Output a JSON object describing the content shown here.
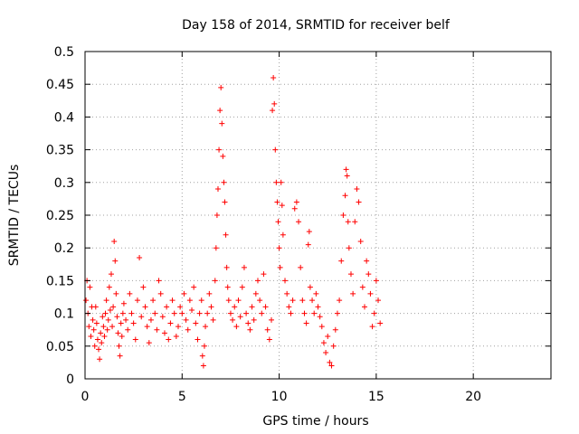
{
  "chart_data": {
    "type": "scatter",
    "title": "Day 158 of 2014, SRMTID for receiver belf",
    "xlabel": "GPS time / hours",
    "ylabel": "SRMTID / TECUs",
    "xlim": [
      0,
      24
    ],
    "ylim": [
      0,
      0.5
    ],
    "xticks": [
      0,
      5,
      10,
      15,
      20
    ],
    "yticks": [
      0,
      0.05,
      0.1,
      0.15,
      0.2,
      0.25,
      0.3,
      0.35,
      0.4,
      0.45,
      0.5
    ],
    "xtick_labels": [
      "0",
      "5",
      "10",
      "15",
      "20"
    ],
    "ytick_labels": [
      "0",
      "0.05",
      "0.1",
      "0.15",
      "0.2",
      "0.25",
      "0.3",
      "0.35",
      "0.4",
      "0.45",
      "0.5"
    ],
    "grid": true,
    "marker": "+",
    "color": "#ff0000",
    "series": [
      {
        "name": "SRMTID",
        "points": [
          [
            0.05,
            0.12
          ],
          [
            0.1,
            0.15
          ],
          [
            0.15,
            0.1
          ],
          [
            0.2,
            0.08
          ],
          [
            0.25,
            0.14
          ],
          [
            0.3,
            0.065
          ],
          [
            0.35,
            0.11
          ],
          [
            0.4,
            0.09
          ],
          [
            0.45,
            0.075
          ],
          [
            0.5,
            0.05
          ],
          [
            0.55,
            0.11
          ],
          [
            0.6,
            0.085
          ],
          [
            0.65,
            0.06
          ],
          [
            0.7,
            0.045
          ],
          [
            0.75,
            0.03
          ],
          [
            0.8,
            0.07
          ],
          [
            0.85,
            0.055
          ],
          [
            0.9,
            0.095
          ],
          [
            0.95,
            0.08
          ],
          [
            1.0,
            0.065
          ],
          [
            1.05,
            0.1
          ],
          [
            1.1,
            0.12
          ],
          [
            1.15,
            0.075
          ],
          [
            1.2,
            0.09
          ],
          [
            1.25,
            0.14
          ],
          [
            1.3,
            0.105
          ],
          [
            1.35,
            0.16
          ],
          [
            1.4,
            0.08
          ],
          [
            1.45,
            0.11
          ],
          [
            1.5,
            0.21
          ],
          [
            1.55,
            0.18
          ],
          [
            1.6,
            0.13
          ],
          [
            1.65,
            0.095
          ],
          [
            1.7,
            0.07
          ],
          [
            1.75,
            0.05
          ],
          [
            1.8,
            0.035
          ],
          [
            1.85,
            0.085
          ],
          [
            1.9,
            0.065
          ],
          [
            1.95,
            0.1
          ],
          [
            2.0,
            0.115
          ],
          [
            2.1,
            0.09
          ],
          [
            2.2,
            0.075
          ],
          [
            2.3,
            0.13
          ],
          [
            2.4,
            0.1
          ],
          [
            2.5,
            0.085
          ],
          [
            2.6,
            0.06
          ],
          [
            2.7,
            0.12
          ],
          [
            2.8,
            0.185
          ],
          [
            2.9,
            0.095
          ],
          [
            3.0,
            0.14
          ],
          [
            3.1,
            0.11
          ],
          [
            3.2,
            0.08
          ],
          [
            3.3,
            0.055
          ],
          [
            3.4,
            0.09
          ],
          [
            3.5,
            0.12
          ],
          [
            3.6,
            0.1
          ],
          [
            3.7,
            0.075
          ],
          [
            3.8,
            0.15
          ],
          [
            3.9,
            0.13
          ],
          [
            4.0,
            0.095
          ],
          [
            4.1,
            0.07
          ],
          [
            4.2,
            0.11
          ],
          [
            4.3,
            0.06
          ],
          [
            4.4,
            0.085
          ],
          [
            4.5,
            0.12
          ],
          [
            4.6,
            0.1
          ],
          [
            4.7,
            0.065
          ],
          [
            4.8,
            0.08
          ],
          [
            4.9,
            0.11
          ],
          [
            5.0,
            0.1
          ],
          [
            5.1,
            0.13
          ],
          [
            5.2,
            0.09
          ],
          [
            5.3,
            0.075
          ],
          [
            5.4,
            0.12
          ],
          [
            5.5,
            0.105
          ],
          [
            5.6,
            0.14
          ],
          [
            5.7,
            0.085
          ],
          [
            5.8,
            0.06
          ],
          [
            5.9,
            0.1
          ],
          [
            6.0,
            0.12
          ],
          [
            6.05,
            0.035
          ],
          [
            6.1,
            0.02
          ],
          [
            6.15,
            0.05
          ],
          [
            6.2,
            0.08
          ],
          [
            6.3,
            0.1
          ],
          [
            6.4,
            0.13
          ],
          [
            6.5,
            0.11
          ],
          [
            6.6,
            0.09
          ],
          [
            6.7,
            0.15
          ],
          [
            6.75,
            0.2
          ],
          [
            6.8,
            0.25
          ],
          [
            6.85,
            0.29
          ],
          [
            6.9,
            0.35
          ],
          [
            6.95,
            0.41
          ],
          [
            7.0,
            0.445
          ],
          [
            7.05,
            0.39
          ],
          [
            7.1,
            0.34
          ],
          [
            7.15,
            0.3
          ],
          [
            7.2,
            0.27
          ],
          [
            7.25,
            0.22
          ],
          [
            7.3,
            0.17
          ],
          [
            7.35,
            0.14
          ],
          [
            7.4,
            0.12
          ],
          [
            7.5,
            0.1
          ],
          [
            7.6,
            0.09
          ],
          [
            7.7,
            0.11
          ],
          [
            7.8,
            0.08
          ],
          [
            7.9,
            0.12
          ],
          [
            8.0,
            0.095
          ],
          [
            8.1,
            0.14
          ],
          [
            8.2,
            0.17
          ],
          [
            8.3,
            0.1
          ],
          [
            8.4,
            0.085
          ],
          [
            8.5,
            0.075
          ],
          [
            8.6,
            0.11
          ],
          [
            8.7,
            0.09
          ],
          [
            8.8,
            0.13
          ],
          [
            8.9,
            0.15
          ],
          [
            9.0,
            0.12
          ],
          [
            9.1,
            0.1
          ],
          [
            9.2,
            0.16
          ],
          [
            9.3,
            0.11
          ],
          [
            9.4,
            0.075
          ],
          [
            9.5,
            0.06
          ],
          [
            9.6,
            0.09
          ],
          [
            9.65,
            0.41
          ],
          [
            9.7,
            0.46
          ],
          [
            9.75,
            0.42
          ],
          [
            9.8,
            0.35
          ],
          [
            9.85,
            0.3
          ],
          [
            9.9,
            0.27
          ],
          [
            9.95,
            0.24
          ],
          [
            10.0,
            0.2
          ],
          [
            10.05,
            0.17
          ],
          [
            10.1,
            0.3
          ],
          [
            10.15,
            0.265
          ],
          [
            10.2,
            0.22
          ],
          [
            10.3,
            0.15
          ],
          [
            10.4,
            0.13
          ],
          [
            10.5,
            0.11
          ],
          [
            10.6,
            0.1
          ],
          [
            10.7,
            0.12
          ],
          [
            10.8,
            0.26
          ],
          [
            10.9,
            0.27
          ],
          [
            11.0,
            0.24
          ],
          [
            11.1,
            0.17
          ],
          [
            11.2,
            0.12
          ],
          [
            11.3,
            0.1
          ],
          [
            11.4,
            0.085
          ],
          [
            11.5,
            0.205
          ],
          [
            11.55,
            0.225
          ],
          [
            11.6,
            0.14
          ],
          [
            11.7,
            0.12
          ],
          [
            11.8,
            0.1
          ],
          [
            11.9,
            0.13
          ],
          [
            12.0,
            0.11
          ],
          [
            12.1,
            0.095
          ],
          [
            12.2,
            0.08
          ],
          [
            12.3,
            0.055
          ],
          [
            12.4,
            0.04
          ],
          [
            12.5,
            0.065
          ],
          [
            12.6,
            0.025
          ],
          [
            12.7,
            0.02
          ],
          [
            12.8,
            0.05
          ],
          [
            12.9,
            0.075
          ],
          [
            13.0,
            0.1
          ],
          [
            13.1,
            0.12
          ],
          [
            13.2,
            0.18
          ],
          [
            13.3,
            0.25
          ],
          [
            13.4,
            0.28
          ],
          [
            13.45,
            0.32
          ],
          [
            13.5,
            0.31
          ],
          [
            13.55,
            0.24
          ],
          [
            13.6,
            0.2
          ],
          [
            13.7,
            0.16
          ],
          [
            13.8,
            0.13
          ],
          [
            13.9,
            0.24
          ],
          [
            14.0,
            0.29
          ],
          [
            14.1,
            0.27
          ],
          [
            14.2,
            0.21
          ],
          [
            14.3,
            0.14
          ],
          [
            14.4,
            0.11
          ],
          [
            14.5,
            0.18
          ],
          [
            14.6,
            0.16
          ],
          [
            14.7,
            0.13
          ],
          [
            14.8,
            0.08
          ],
          [
            14.9,
            0.1
          ],
          [
            15.0,
            0.15
          ],
          [
            15.1,
            0.12
          ],
          [
            15.2,
            0.085
          ]
        ]
      }
    ]
  }
}
